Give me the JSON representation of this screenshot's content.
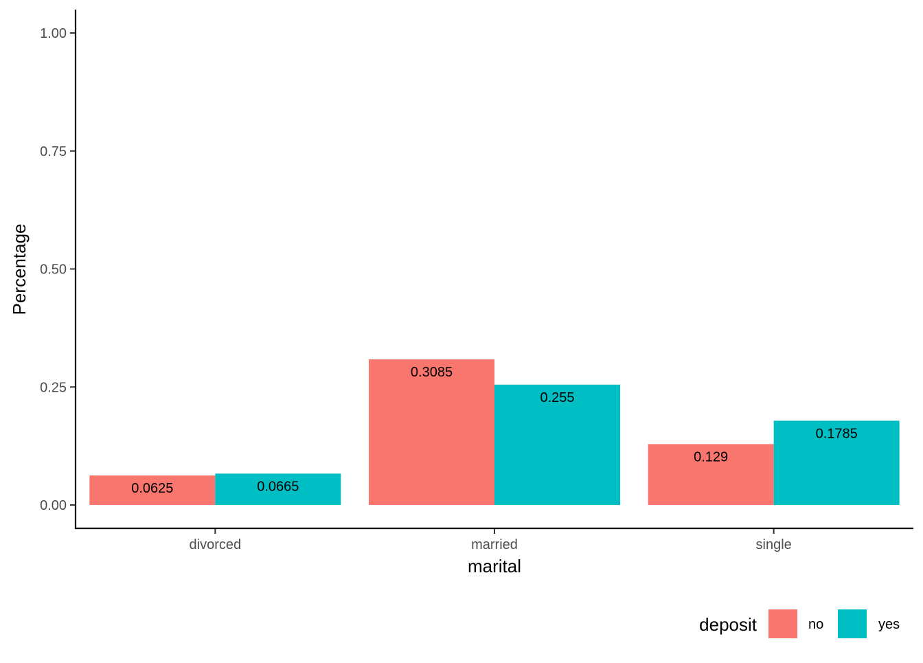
{
  "chart_data": {
    "type": "bar",
    "title": "",
    "xlabel": "marital",
    "ylabel": "Percentage",
    "categories": [
      "divorced",
      "married",
      "single"
    ],
    "series": [
      {
        "name": "no",
        "values": [
          0.0625,
          0.3085,
          0.129
        ],
        "labels": [
          "0.0625",
          "0.3085",
          "0.129"
        ],
        "color": "#F8766D"
      },
      {
        "name": "yes",
        "values": [
          0.0665,
          0.255,
          0.1785
        ],
        "labels": [
          "0.0665",
          "0.255",
          "0.1785"
        ],
        "color": "#00BFC4"
      }
    ],
    "ylim": [
      0,
      1
    ],
    "yticks": [
      0,
      0.25,
      0.5,
      0.75,
      1.0
    ],
    "ytick_labels": [
      "0.00",
      "0.25",
      "0.50",
      "0.75",
      "1.00"
    ],
    "grid": false,
    "legend": {
      "title": "deposit",
      "position": "bottom-right",
      "entries": [
        "no",
        "yes"
      ]
    }
  }
}
